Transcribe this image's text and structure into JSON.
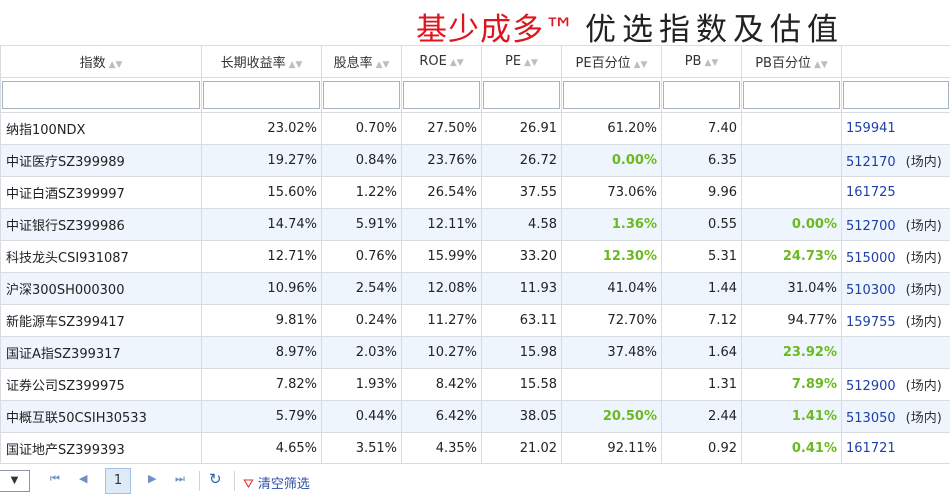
{
  "title": {
    "brand": "基少成多™",
    "rest": "优选指数及估值"
  },
  "columns": [
    "指数",
    "长期收益率",
    "股息率",
    "ROE",
    "PE",
    "PE百分位",
    "PB",
    "PB百分位",
    ""
  ],
  "rows": [
    [
      "纳指100NDX",
      "23.02%",
      "0.70%",
      "27.50%",
      "26.91",
      "61.20%",
      "7.40",
      "",
      "159941",
      ""
    ],
    [
      "中证医疗SZ399989",
      "19.27%",
      "0.84%",
      "23.76%",
      "26.72",
      "0.00%",
      "6.35",
      "",
      "512170",
      "(场内)"
    ],
    [
      "中证白酒SZ399997",
      "15.60%",
      "1.22%",
      "26.54%",
      "37.55",
      "73.06%",
      "9.96",
      "",
      "161725",
      ""
    ],
    [
      "中证银行SZ399986",
      "14.74%",
      "5.91%",
      "12.11%",
      "4.58",
      "1.36%",
      "0.55",
      "0.00%",
      "512700",
      "(场内)"
    ],
    [
      "科技龙头CSI931087",
      "12.71%",
      "0.76%",
      "15.99%",
      "33.20",
      "12.30%",
      "5.31",
      "24.73%",
      "515000",
      "(场内)"
    ],
    [
      "沪深300SH000300",
      "10.96%",
      "2.54%",
      "12.08%",
      "11.93",
      "41.04%",
      "1.44",
      "31.04%",
      "510300",
      "(场内)"
    ],
    [
      "新能源车SZ399417",
      "9.81%",
      "0.24%",
      "11.27%",
      "63.11",
      "72.70%",
      "7.12",
      "94.77%",
      "159755",
      "(场内)"
    ],
    [
      "国证A指SZ399317",
      "8.97%",
      "2.03%",
      "10.27%",
      "15.98",
      "37.48%",
      "1.64",
      "23.92%",
      "",
      ""
    ],
    [
      "证券公司SZ399975",
      "7.82%",
      "1.93%",
      "8.42%",
      "15.58",
      "",
      "1.31",
      "7.89%",
      "512900",
      "(场内)"
    ],
    [
      "中概互联50CSIH30533",
      "5.79%",
      "0.44%",
      "6.42%",
      "38.05",
      "20.50%",
      "2.44",
      "1.41%",
      "513050",
      "(场内)"
    ],
    [
      "国证地产SZ399393",
      "4.65%",
      "3.51%",
      "4.35%",
      "21.02",
      "92.11%",
      "0.92",
      "0.41%",
      "161721",
      ""
    ]
  ],
  "highlight_color": "#6cb821",
  "pager": {
    "page_size_icon": "chevron-down-icon",
    "current_page": "1",
    "clear_label": "清空筛选"
  }
}
